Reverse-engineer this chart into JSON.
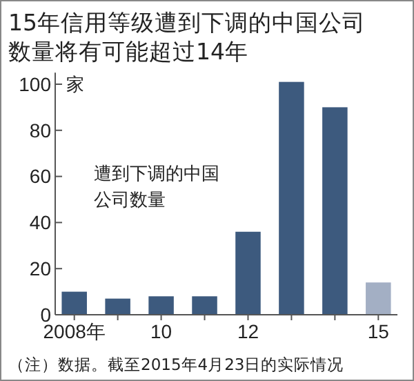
{
  "chart_data": {
    "type": "bar",
    "title": "15年信用等级遭到下调的中国公司数量将有可能超过14年",
    "ylabel": "家",
    "categories": [
      "2008年",
      null,
      "10",
      null,
      "12",
      null,
      null,
      "15"
    ],
    "values": [
      10,
      7,
      8,
      8,
      36,
      101,
      90,
      14
    ],
    "colors": [
      "#3d5a7e",
      "#3d5a7e",
      "#3d5a7e",
      "#3d5a7e",
      "#3d5a7e",
      "#3d5a7e",
      "#3d5a7e",
      "#a3afc4"
    ],
    "ylim": [
      0,
      105
    ],
    "yticks": [
      0,
      20,
      40,
      60,
      80,
      100
    ],
    "grid": false,
    "annotations": [
      "遭到下调的中国公司数量",
      "（注）数据。截至2015年4月23日的实际情况"
    ]
  }
}
